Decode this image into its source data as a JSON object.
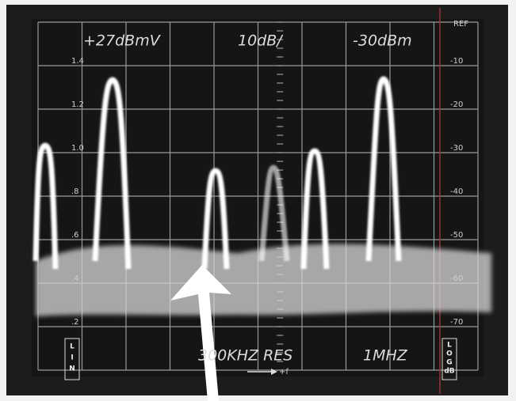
{
  "screen": {
    "top_labels": [
      "+27dBmV",
      "10dB/",
      "-30dBm"
    ],
    "ref_label": "REF",
    "left_scale": [
      "1.4",
      "1.2",
      "1.0",
      ".8",
      ".6",
      ".4",
      ".2"
    ],
    "right_scale": [
      "-10",
      "-20",
      "-30",
      "-40",
      "-50",
      "-60",
      "-70"
    ],
    "lin_label": [
      "L",
      "I",
      "N"
    ],
    "log_label": [
      "L",
      "O",
      "G",
      "dB"
    ],
    "bottom_labels": [
      "300KHZ RES",
      "1MHZ"
    ],
    "freq_arrow_label": "+f"
  }
}
